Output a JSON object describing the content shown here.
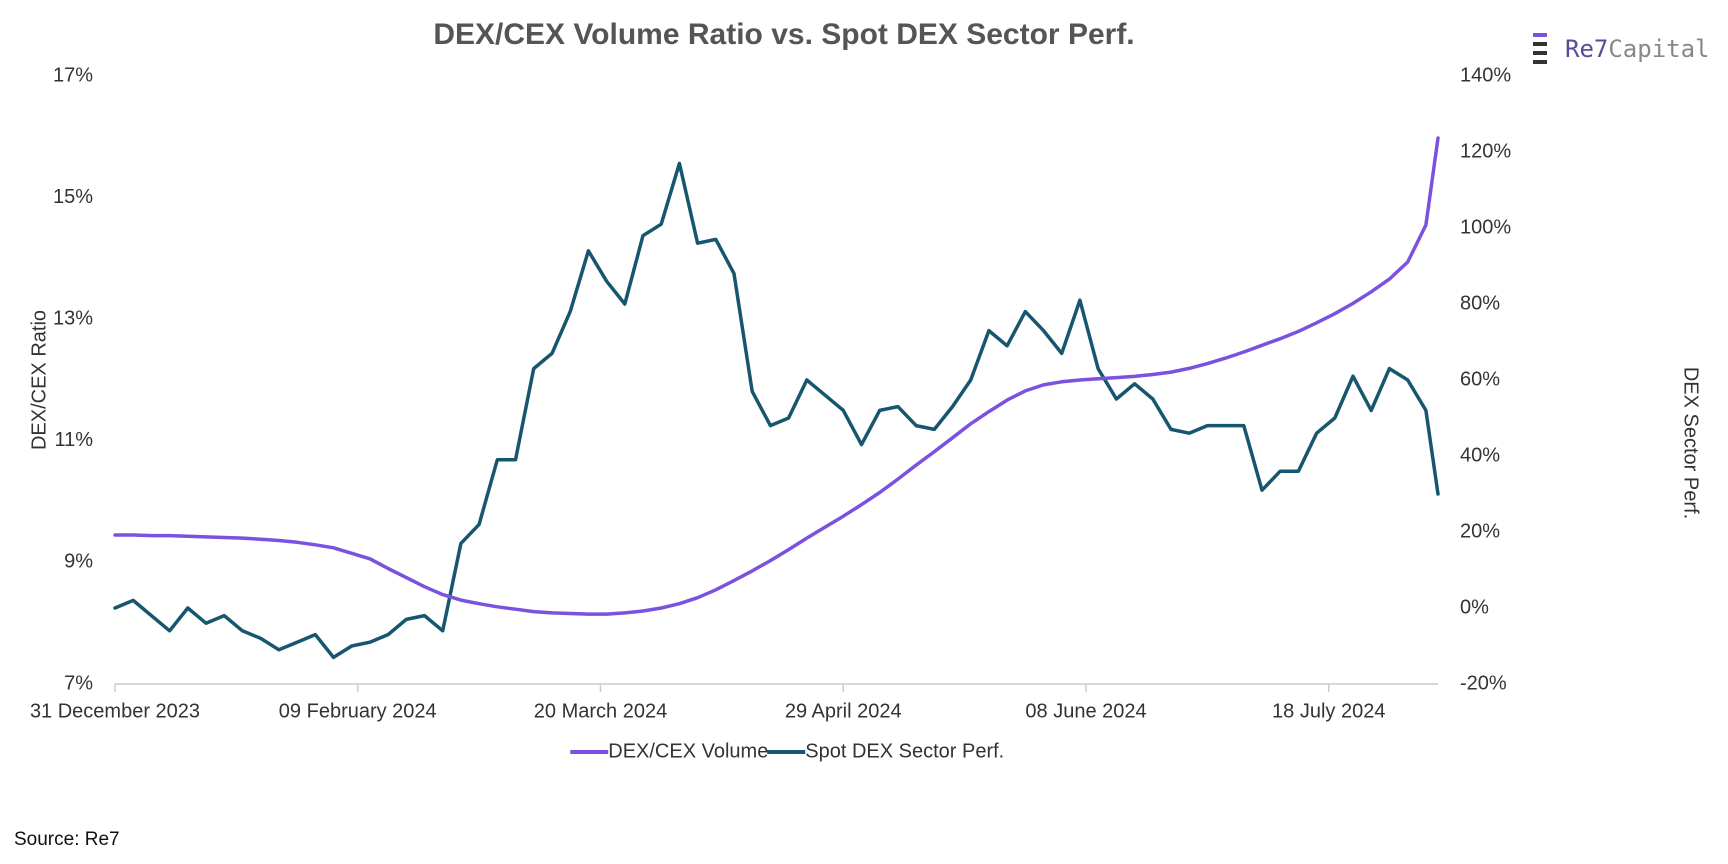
{
  "chart_data": {
    "type": "line",
    "title": "DEX/CEX Volume Ratio vs. Spot DEX Sector Perf.",
    "y_label": "DEX/CEX Ratio",
    "y2_label": "DEX Sector Perf.",
    "source": "Source: Re7",
    "logo": [
      "Re7",
      "Capital"
    ],
    "x": [
      "2023-12-31",
      "2024-01-03",
      "2024-01-06",
      "2024-01-09",
      "2024-01-12",
      "2024-01-15",
      "2024-01-18",
      "2024-01-21",
      "2024-01-24",
      "2024-01-27",
      "2024-01-30",
      "2024-02-02",
      "2024-02-05",
      "2024-02-08",
      "2024-02-11",
      "2024-02-14",
      "2024-02-17",
      "2024-02-20",
      "2024-02-23",
      "2024-02-26",
      "2024-02-29",
      "2024-03-03",
      "2024-03-06",
      "2024-03-09",
      "2024-03-12",
      "2024-03-15",
      "2024-03-18",
      "2024-03-21",
      "2024-03-24",
      "2024-03-27",
      "2024-03-30",
      "2024-04-02",
      "2024-04-05",
      "2024-04-08",
      "2024-04-11",
      "2024-04-14",
      "2024-04-17",
      "2024-04-20",
      "2024-04-23",
      "2024-04-26",
      "2024-04-29",
      "2024-05-02",
      "2024-05-05",
      "2024-05-08",
      "2024-05-11",
      "2024-05-14",
      "2024-05-17",
      "2024-05-20",
      "2024-05-23",
      "2024-05-26",
      "2024-05-29",
      "2024-06-01",
      "2024-06-04",
      "2024-06-07",
      "2024-06-10",
      "2024-06-13",
      "2024-06-16",
      "2024-06-19",
      "2024-06-22",
      "2024-06-25",
      "2024-06-28",
      "2024-07-01",
      "2024-07-04",
      "2024-07-07",
      "2024-07-10",
      "2024-07-13",
      "2024-07-16",
      "2024-07-19",
      "2024-07-22",
      "2024-07-25",
      "2024-07-28",
      "2024-07-31",
      "2024-08-03",
      "2024-08-05"
    ],
    "xlim": [
      "2023-12-31",
      "2024-08-05"
    ],
    "xticks": [
      {
        "value": "2023-12-31",
        "label": "31 December 2023"
      },
      {
        "value": "2024-02-09",
        "label": "09 February 2024"
      },
      {
        "value": "2024-03-20",
        "label": "20 March 2024"
      },
      {
        "value": "2024-04-29",
        "label": "29 April 2024"
      },
      {
        "value": "2024-06-08",
        "label": "08 June 2024"
      },
      {
        "value": "2024-07-18",
        "label": "18 July 2024"
      }
    ],
    "ylim": [
      7,
      17
    ],
    "yticks": [
      {
        "value": 7,
        "label": "7%"
      },
      {
        "value": 9,
        "label": "9%"
      },
      {
        "value": 11,
        "label": "11%"
      },
      {
        "value": 13,
        "label": "13%"
      },
      {
        "value": 15,
        "label": "15%"
      },
      {
        "value": 17,
        "label": "17%"
      }
    ],
    "y2lim": [
      -20,
      140
    ],
    "y2ticks": [
      {
        "value": -20,
        "label": "-20%"
      },
      {
        "value": 0,
        "label": "0%"
      },
      {
        "value": 20,
        "label": "20%"
      },
      {
        "value": 40,
        "label": "40%"
      },
      {
        "value": 60,
        "label": "60%"
      },
      {
        "value": 80,
        "label": "80%"
      },
      {
        "value": 100,
        "label": "100%"
      },
      {
        "value": 120,
        "label": "120%"
      },
      {
        "value": 140,
        "label": "140%"
      }
    ],
    "legend": "bottom",
    "series": [
      {
        "name": "DEX/CEX Volume",
        "color": "#7b52e0",
        "values": [
          9.45,
          9.45,
          9.44,
          9.44,
          9.43,
          9.42,
          9.41,
          9.4,
          9.38,
          9.36,
          9.33,
          9.29,
          9.24,
          9.15,
          9.06,
          8.9,
          8.75,
          8.6,
          8.47,
          8.38,
          8.32,
          8.27,
          8.23,
          8.19,
          8.17,
          8.16,
          8.15,
          8.15,
          8.17,
          8.2,
          8.25,
          8.32,
          8.42,
          8.55,
          8.7,
          8.86,
          9.03,
          9.21,
          9.4,
          9.58,
          9.76,
          9.95,
          10.15,
          10.37,
          10.6,
          10.82,
          11.05,
          11.28,
          11.48,
          11.67,
          11.82,
          11.92,
          11.97,
          12.0,
          12.02,
          12.04,
          12.06,
          12.09,
          12.13,
          12.19,
          12.27,
          12.36,
          12.46,
          12.57,
          12.68,
          12.8,
          12.94,
          13.09,
          13.26,
          13.45,
          13.66,
          13.94,
          14.55,
          15.98
        ]
      },
      {
        "name": "Spot DEX Sector Perf.",
        "color": "#17566f",
        "axis": "y2",
        "values": [
          0,
          2,
          -2,
          -6,
          0,
          -4,
          -2,
          -6,
          -8,
          -11,
          -9,
          -7,
          -13,
          -10,
          -9,
          -7,
          -3,
          -2,
          -6,
          17,
          22,
          39,
          39,
          63,
          67,
          78,
          94,
          86,
          80,
          98,
          101,
          117,
          96,
          97,
          88,
          57,
          48,
          50,
          60,
          56,
          52,
          43,
          52,
          53,
          48,
          47,
          53,
          60,
          73,
          69,
          78,
          73,
          67,
          81,
          63,
          55,
          59,
          55,
          47,
          46,
          48,
          48,
          48,
          31,
          36,
          36,
          46,
          50,
          61,
          52,
          63,
          60,
          52,
          30
        ]
      }
    ]
  }
}
